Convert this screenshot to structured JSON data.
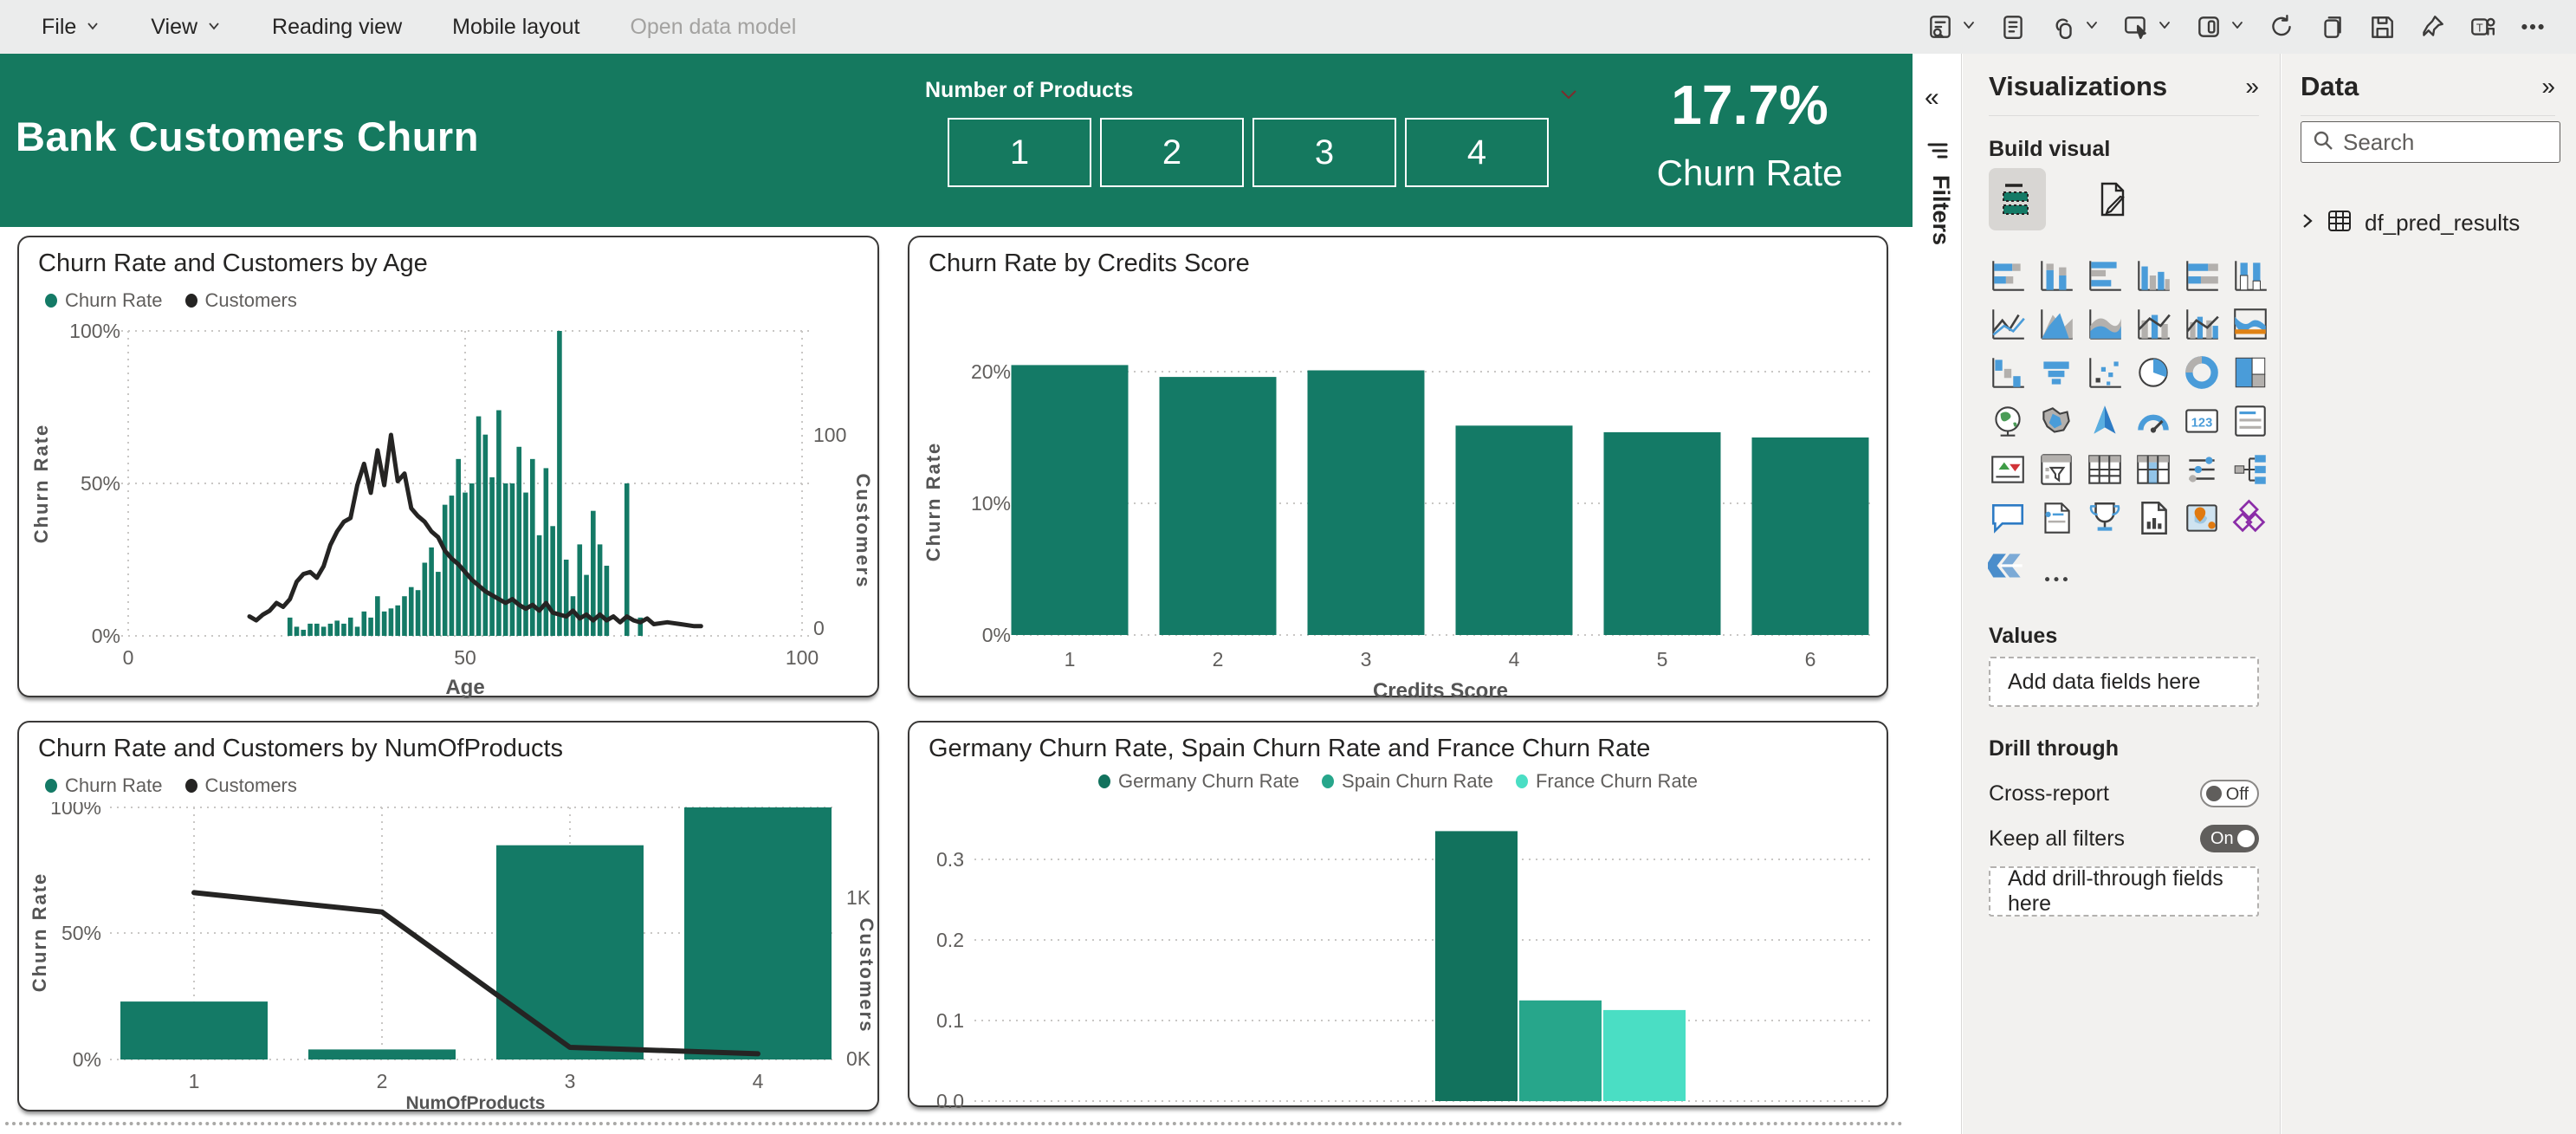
{
  "toolbar": {
    "menu": [
      {
        "label": "File",
        "chevron": true
      },
      {
        "label": "View",
        "chevron": true
      },
      {
        "label": "Reading view",
        "chevron": false
      },
      {
        "label": "Mobile layout",
        "chevron": false
      },
      {
        "label": "Open data model",
        "chevron": false,
        "disabled": true
      }
    ],
    "tools": [
      {
        "name": "report-feedback-icon",
        "chevron": true
      },
      {
        "name": "notes-icon",
        "chevron": false
      },
      {
        "name": "link-icon",
        "chevron": true
      },
      {
        "name": "select-icon",
        "chevron": true
      },
      {
        "name": "mobile-preview-icon",
        "chevron": true
      },
      {
        "name": "refresh-icon",
        "chevron": false
      },
      {
        "name": "duplicate-icon",
        "chevron": false
      },
      {
        "name": "save-icon",
        "chevron": false
      },
      {
        "name": "pin-icon",
        "chevron": false
      },
      {
        "name": "teams-icon",
        "chevron": false
      },
      {
        "name": "more-options-icon",
        "chevron": false
      }
    ]
  },
  "header": {
    "title": "Bank Customers Churn",
    "slicer_label": "Number of Products",
    "slicer_options": [
      "1",
      "2",
      "3",
      "4"
    ],
    "kpi_value": "17.7%",
    "kpi_label": "Churn Rate"
  },
  "filters_rail": {
    "label": "Filters",
    "collapse_icon": "«"
  },
  "colors": {
    "theme_green": "#15795f",
    "bar_green": "#147a66",
    "line_black": "#252423",
    "germany": "#12725d",
    "spain": "#27a68b",
    "france": "#4adec4"
  },
  "charts": [
    {
      "id": "age",
      "type": "combo-bar-line",
      "title": "Churn Rate and Customers by Age",
      "legend": [
        {
          "label": "Churn Rate",
          "color": "#147a66"
        },
        {
          "label": "Customers",
          "color": "#252423"
        }
      ],
      "x_axis": {
        "label": "Age",
        "min": 0,
        "max": 100,
        "ticks": [
          0,
          50,
          100
        ]
      },
      "y_left": {
        "label": "Churn Rate",
        "ticks": [
          "0%",
          "50%",
          "100%"
        ],
        "min": 0,
        "max": 100
      },
      "y_right": {
        "label": "Customers",
        "ticks": [
          "0",
          "100"
        ],
        "min": 0,
        "max": 154
      },
      "bars": {
        "name": "Churn Rate",
        "color": "#147a66",
        "points": [
          [
            24,
            6
          ],
          [
            25,
            3
          ],
          [
            26,
            2
          ],
          [
            27,
            4
          ],
          [
            28,
            4
          ],
          [
            29,
            3
          ],
          [
            30,
            4
          ],
          [
            31,
            5
          ],
          [
            32,
            4
          ],
          [
            33,
            6
          ],
          [
            34,
            3
          ],
          [
            35,
            8
          ],
          [
            36,
            6
          ],
          [
            37,
            13
          ],
          [
            38,
            8
          ],
          [
            39,
            9
          ],
          [
            40,
            10
          ],
          [
            41,
            13
          ],
          [
            42,
            16
          ],
          [
            43,
            15
          ],
          [
            44,
            24
          ],
          [
            45,
            29
          ],
          [
            46,
            21
          ],
          [
            47,
            43
          ],
          [
            48,
            46
          ],
          [
            49,
            58
          ],
          [
            50,
            47
          ],
          [
            51,
            50
          ],
          [
            52,
            72
          ],
          [
            53,
            66
          ],
          [
            54,
            52
          ],
          [
            55,
            74
          ],
          [
            56,
            50
          ],
          [
            57,
            50
          ],
          [
            58,
            62
          ],
          [
            59,
            47
          ],
          [
            60,
            58
          ],
          [
            61,
            33
          ],
          [
            62,
            55
          ],
          [
            63,
            36
          ],
          [
            64,
            100
          ],
          [
            65,
            25
          ],
          [
            66,
            13
          ],
          [
            67,
            30
          ],
          [
            68,
            20
          ],
          [
            69,
            41
          ],
          [
            70,
            30
          ],
          [
            71,
            23
          ],
          [
            74,
            50
          ],
          [
            76,
            6
          ]
        ]
      },
      "line": {
        "name": "Customers",
        "color": "#252423",
        "points": [
          [
            18,
            6
          ],
          [
            19,
            4
          ],
          [
            20,
            7
          ],
          [
            21,
            9
          ],
          [
            22,
            13
          ],
          [
            23,
            11
          ],
          [
            24,
            15
          ],
          [
            25,
            24
          ],
          [
            26,
            28
          ],
          [
            27,
            29
          ],
          [
            28,
            26
          ],
          [
            29,
            32
          ],
          [
            30,
            43
          ],
          [
            31,
            50
          ],
          [
            32,
            55
          ],
          [
            33,
            57
          ],
          [
            34,
            74
          ],
          [
            35,
            85
          ],
          [
            36,
            70
          ],
          [
            37,
            92
          ],
          [
            38,
            74
          ],
          [
            39,
            100
          ],
          [
            40,
            76
          ],
          [
            41,
            80
          ],
          [
            42,
            62
          ],
          [
            43,
            58
          ],
          [
            44,
            55
          ],
          [
            45,
            50
          ],
          [
            46,
            47
          ],
          [
            47,
            40
          ],
          [
            48,
            36
          ],
          [
            49,
            33
          ],
          [
            50,
            29
          ],
          [
            51,
            25
          ],
          [
            52,
            22
          ],
          [
            53,
            19
          ],
          [
            54,
            17
          ],
          [
            55,
            15
          ],
          [
            56,
            13
          ],
          [
            57,
            15
          ],
          [
            58,
            12
          ],
          [
            59,
            10
          ],
          [
            60,
            12
          ],
          [
            61,
            9
          ],
          [
            62,
            13
          ],
          [
            63,
            8
          ],
          [
            64,
            7
          ],
          [
            65,
            6
          ],
          [
            66,
            9
          ],
          [
            67,
            5
          ],
          [
            68,
            7
          ],
          [
            69,
            4
          ],
          [
            70,
            7
          ],
          [
            71,
            4
          ],
          [
            72,
            6
          ],
          [
            73,
            3
          ],
          [
            74,
            6
          ],
          [
            75,
            4
          ],
          [
            76,
            3
          ],
          [
            77,
            5
          ],
          [
            78,
            2
          ],
          [
            80,
            3
          ],
          [
            82,
            2
          ],
          [
            84,
            1
          ],
          [
            85,
            1
          ]
        ]
      }
    },
    {
      "id": "credit",
      "type": "bar",
      "title": "Churn Rate by Credits Score",
      "categories": [
        "1",
        "2",
        "3",
        "4",
        "5",
        "6"
      ],
      "values": [
        20.5,
        19.6,
        20.1,
        15.9,
        15.4,
        15.0
      ],
      "bar_color": "#147a66",
      "x_axis": {
        "label": "Credits Score"
      },
      "y_axis": {
        "label": "Churn Rate",
        "ticks": [
          "0%",
          "10%",
          "20%"
        ],
        "min": 0,
        "max": 24
      }
    },
    {
      "id": "products",
      "type": "combo-bar-line",
      "title": "Churn Rate and Customers by NumOfProducts",
      "legend": [
        {
          "label": "Churn Rate",
          "color": "#147a66"
        },
        {
          "label": "Customers",
          "color": "#252423"
        }
      ],
      "categories": [
        "1",
        "2",
        "3",
        "4"
      ],
      "bars": {
        "name": "Churn Rate",
        "color": "#147a66",
        "values": [
          23,
          4,
          85,
          100
        ]
      },
      "line": {
        "name": "Customers",
        "color": "#252423",
        "values_k": [
          1.03,
          0.91,
          0.07,
          0.03
        ]
      },
      "x_axis": {
        "label": "NumOfProducts"
      },
      "y_left": {
        "label": "Churn Rate",
        "ticks": [
          "0%",
          "50%",
          "100%"
        ],
        "min": 0,
        "max": 100
      },
      "y_right": {
        "label": "Customers",
        "ticks": [
          "0K",
          "1K"
        ],
        "min": 0,
        "max": 1.56
      }
    },
    {
      "id": "geo",
      "type": "clustered-bar",
      "title": "Germany Churn Rate, Spain Churn Rate and France Churn Rate",
      "legend": [
        {
          "label": "Germany Churn Rate",
          "color": "#12725d"
        },
        {
          "label": "Spain Churn Rate",
          "color": "#27a68b"
        },
        {
          "label": "France Churn Rate",
          "color": "#4adec4"
        }
      ],
      "series": [
        {
          "name": "Germany Churn Rate",
          "color": "#12725d",
          "value": 0.335
        },
        {
          "name": "Spain Churn Rate",
          "color": "#27a68b",
          "value": 0.125
        },
        {
          "name": "France Churn Rate",
          "color": "#4adec4",
          "value": 0.113
        }
      ],
      "y_axis": {
        "ticks": [
          "0.0",
          "0.1",
          "0.2",
          "0.3"
        ],
        "min": 0,
        "max": 0.37
      }
    }
  ],
  "viz_panel": {
    "title": "Visualizations",
    "collapse_icon": "»",
    "build_label": "Build visual",
    "mode_icons": [
      "build-visual-icon",
      "format-visual-icon"
    ],
    "gallery": [
      "stacked-bar-chart-icon",
      "stacked-column-chart-icon",
      "clustered-bar-chart-icon",
      "clustered-column-chart-icon",
      "hundred-stacked-bar-chart-icon",
      "hundred-stacked-column-chart-icon",
      "line-chart-icon",
      "area-chart-icon",
      "stacked-area-chart-icon",
      "line-stacked-column-chart-icon",
      "line-clustered-column-chart-icon",
      "ribbon-chart-icon",
      "waterfall-chart-icon",
      "funnel-chart-icon",
      "scatter-chart-icon",
      "pie-chart-icon",
      "donut-chart-icon",
      "treemap-icon",
      "map-icon",
      "filled-map-icon",
      "azure-map-icon",
      "gauge-icon",
      "card-icon",
      "multi-row-card-icon",
      "kpi-icon",
      "slicer-icon",
      "table-icon",
      "matrix-icon",
      "new-slicer-icon",
      "decomposition-tree-icon",
      "qa-icon",
      "smart-narrative-icon",
      "metrics-icon",
      "paginated-report-icon",
      "arcgis-map-icon",
      "power-apps-icon",
      "power-automate-icon",
      "more-visuals-icon"
    ],
    "values_label": "Values",
    "values_placeholder": "Add data fields here",
    "drill_label": "Drill through",
    "cross_label": "Cross-report",
    "cross_state": "Off",
    "keep_label": "Keep all filters",
    "keep_state": "On",
    "drill_placeholder": "Add drill-through fields here"
  },
  "data_panel": {
    "title": "Data",
    "collapse_icon": "»",
    "search_placeholder": "Search",
    "table_name": "df_pred_results"
  }
}
